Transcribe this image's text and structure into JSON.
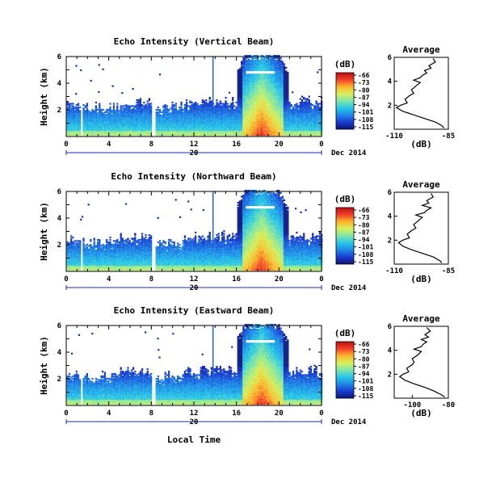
{
  "figure": {
    "xlabel": "Local Time",
    "date_label": "Dec 2014",
    "day_label": "20",
    "ylabel": "Height (km)",
    "colorbar_unit": "(dB)",
    "colorbar_ticks": [
      "-66",
      "-73",
      "-80",
      "-87",
      "-94",
      "-101",
      "-108",
      "-115"
    ],
    "colormap": [
      "#0b1670",
      "#1a3bd0",
      "#1e88e8",
      "#27c6e8",
      "#7fe6a8",
      "#d6f05a",
      "#fdb62c",
      "#f2402a",
      "#b80f12"
    ],
    "x_ticks": [
      "0",
      "4",
      "8",
      "12",
      "16",
      "20",
      "0"
    ],
    "y_ticks": [
      "2",
      "4",
      "6"
    ],
    "avg_title": "Average",
    "avg_xlabel": "(dB)"
  },
  "chart_data": [
    {
      "type": "heatmap",
      "title": "Echo Intensity (Vertical Beam)",
      "xlabel": "Local Time",
      "ylabel": "Height (km)",
      "xlim": [
        0,
        24
      ],
      "ylim": [
        0,
        6
      ],
      "colorbar_range": [
        -115,
        -66
      ],
      "avg_profile": {
        "title": "Average",
        "xlabel": "(dB)",
        "xlim": [
          -110,
          -85
        ],
        "x_ticks": [
          "-110",
          "-85"
        ],
        "height": [
          0.1,
          0.3,
          0.6,
          0.9,
          1.2,
          1.5,
          1.8,
          2.0,
          2.2,
          2.5,
          2.8,
          3.0,
          3.3,
          3.6,
          3.9,
          4.1,
          4.3,
          4.5,
          4.7,
          4.9,
          5.1,
          5.3,
          5.6,
          5.9
        ],
        "value": [
          -87,
          -88,
          -91,
          -96,
          -101,
          -106,
          -109,
          -107,
          -104,
          -105,
          -103,
          -101,
          -102,
          -100,
          -98,
          -101,
          -98,
          -97,
          -95,
          -96,
          -93,
          -94,
          -91,
          -92
        ]
      }
    },
    {
      "type": "heatmap",
      "title": "Echo Intensity (Northward Beam)",
      "xlabel": "Local Time",
      "ylabel": "Height (km)",
      "xlim": [
        0,
        24
      ],
      "ylim": [
        0,
        6
      ],
      "colorbar_range": [
        -115,
        -66
      ],
      "avg_profile": {
        "title": "Average",
        "xlabel": "(dB)",
        "xlim": [
          -110,
          -85
        ],
        "x_ticks": [
          "-110",
          "-85"
        ],
        "height": [
          0.1,
          0.3,
          0.6,
          0.9,
          1.2,
          1.5,
          1.8,
          2.0,
          2.2,
          2.5,
          2.8,
          3.0,
          3.3,
          3.6,
          3.9,
          4.1,
          4.3,
          4.5,
          4.7,
          4.9,
          5.1,
          5.3,
          5.6,
          5.9
        ],
        "value": [
          -88,
          -89,
          -92,
          -97,
          -102,
          -106,
          -108,
          -106,
          -103,
          -104,
          -102,
          -100,
          -101,
          -99,
          -97,
          -100,
          -96,
          -95,
          -93,
          -97,
          -94,
          -95,
          -92,
          -93
        ]
      }
    },
    {
      "type": "heatmap",
      "title": "Echo Intensity (Eastward Beam)",
      "xlabel": "Local Time",
      "ylabel": "Height (km)",
      "xlim": [
        0,
        24
      ],
      "ylim": [
        0,
        6
      ],
      "colorbar_range": [
        -115,
        -66
      ],
      "avg_profile": {
        "title": "Average",
        "xlabel": "(dB)",
        "xlim": [
          -110,
          -80
        ],
        "x_ticks": [
          "-100",
          "-80"
        ],
        "height": [
          0.1,
          0.3,
          0.6,
          0.9,
          1.2,
          1.5,
          1.8,
          2.0,
          2.2,
          2.5,
          2.8,
          3.0,
          3.3,
          3.6,
          3.9,
          4.1,
          4.3,
          4.5,
          4.7,
          4.9,
          5.1,
          5.3,
          5.6,
          5.9
        ],
        "value": [
          -82,
          -84,
          -88,
          -93,
          -99,
          -104,
          -107,
          -105,
          -102,
          -103,
          -100,
          -99,
          -100,
          -97,
          -95,
          -99,
          -95,
          -94,
          -92,
          -95,
          -91,
          -93,
          -90,
          -92
        ]
      }
    }
  ]
}
